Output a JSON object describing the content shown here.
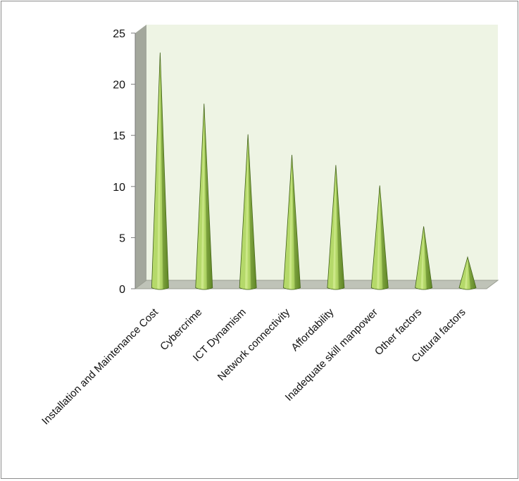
{
  "chart_data": {
    "type": "bar",
    "bar_shape": "cone",
    "style": "3d",
    "categories": [
      "Installation and Maintenance Cost",
      "Cybercrime",
      "ICT Dynamism",
      "Network connectivity",
      "Affordability",
      "Inadequate skill manpower",
      "Other factors",
      "Cultural factors"
    ],
    "values": [
      23,
      18,
      15,
      13,
      12,
      10,
      6,
      3
    ],
    "title": "",
    "xlabel": "",
    "ylabel": "",
    "ylim": [
      0,
      25
    ],
    "yticks": [
      0,
      5,
      10,
      15,
      20,
      25
    ],
    "grid": false,
    "legend": "none",
    "colors": {
      "cone_light": "#b5d96a",
      "cone_dark": "#5f8526",
      "cone_edge": "#3f5f16",
      "back_wall": "#eef4e4",
      "side_wall": "#a3a79c",
      "floor": "#bfc3b8",
      "axis": "#7a7a7a"
    }
  }
}
